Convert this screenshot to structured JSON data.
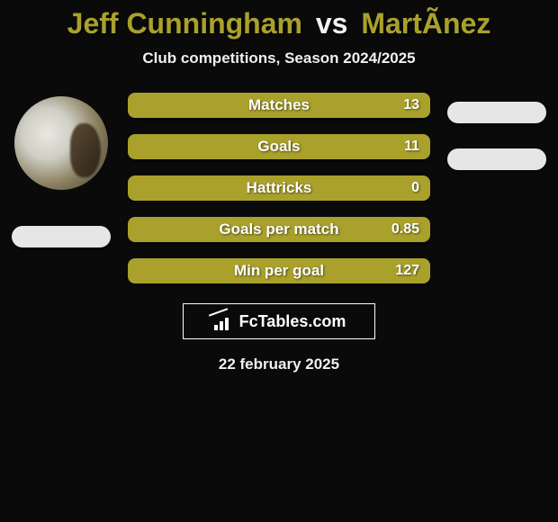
{
  "title": {
    "player1": "Jeff Cunningham",
    "vs": "vs",
    "player2": "MartÃ­nez",
    "player1_color": "#a9a12c",
    "vs_color": "#f2f2f2",
    "player2_color": "#a9a12c"
  },
  "subtitle": "Club competitions, Season 2024/2025",
  "colors": {
    "background": "#0a0a0a",
    "bar_fill": "#a9a12c",
    "pill": "#e6e6e6",
    "text": "#ffffff"
  },
  "stats": [
    {
      "label": "Matches",
      "value": "13"
    },
    {
      "label": "Goals",
      "value": "11"
    },
    {
      "label": "Hattricks",
      "value": "0"
    },
    {
      "label": "Goals per match",
      "value": "0.85"
    },
    {
      "label": "Min per goal",
      "value": "127"
    }
  ],
  "logo_text": "FcTables.com",
  "date": "22 february 2025"
}
